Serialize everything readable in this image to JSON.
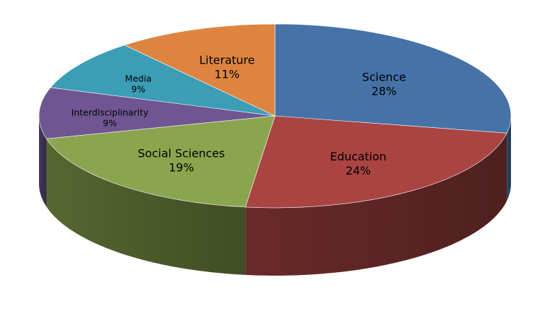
{
  "chart_data": {
    "type": "pie",
    "style": "3d",
    "title": "",
    "slices": [
      {
        "label": "Science",
        "value": 28,
        "value_label": "28%",
        "color": "#4672A8"
      },
      {
        "label": "Education",
        "value": 24,
        "value_label": "24%",
        "color": "#A94442"
      },
      {
        "label": "Social Sciences",
        "value": 19,
        "value_label": "19%",
        "color": "#8AA54E"
      },
      {
        "label": "Interdisciplinarity",
        "value": 9,
        "value_label": "9%",
        "color": "#6F5692"
      },
      {
        "label": "Media",
        "value": 9,
        "value_label": "9%",
        "color": "#3B9DB6"
      },
      {
        "label": "Literature",
        "value": 11,
        "value_label": "11%",
        "color": "#DD8540"
      }
    ]
  }
}
